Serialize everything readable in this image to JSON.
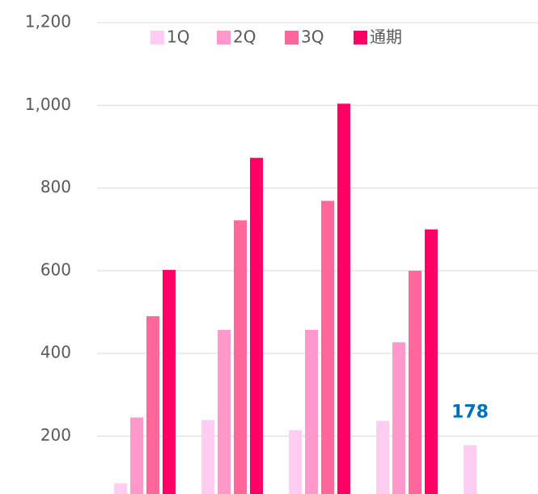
{
  "chart_data": {
    "type": "bar",
    "categories": [
      null,
      null,
      null,
      null,
      null
    ],
    "series": [
      {
        "name": "1Q",
        "color": "#ffccf2",
        "values": [
          86,
          239,
          214,
          237,
          178
        ]
      },
      {
        "name": "2Q",
        "color": "#ff99cc",
        "values": [
          245,
          457,
          457,
          427,
          null
        ]
      },
      {
        "name": "3Q",
        "color": "#ff6699",
        "values": [
          490,
          722,
          769,
          600,
          null
        ]
      },
      {
        "name": "通期",
        "color": "#ff0066",
        "values": [
          602,
          873,
          1004,
          700,
          null
        ]
      }
    ],
    "ylim": [
      60,
      1200
    ],
    "yticks": [
      200,
      400,
      600,
      800,
      {
        "value": 1000,
        "label": "1,000"
      },
      {
        "value": 1200,
        "label": "1,200"
      }
    ],
    "grid": true,
    "legend": "top",
    "data_label_color": "#0070c0"
  }
}
